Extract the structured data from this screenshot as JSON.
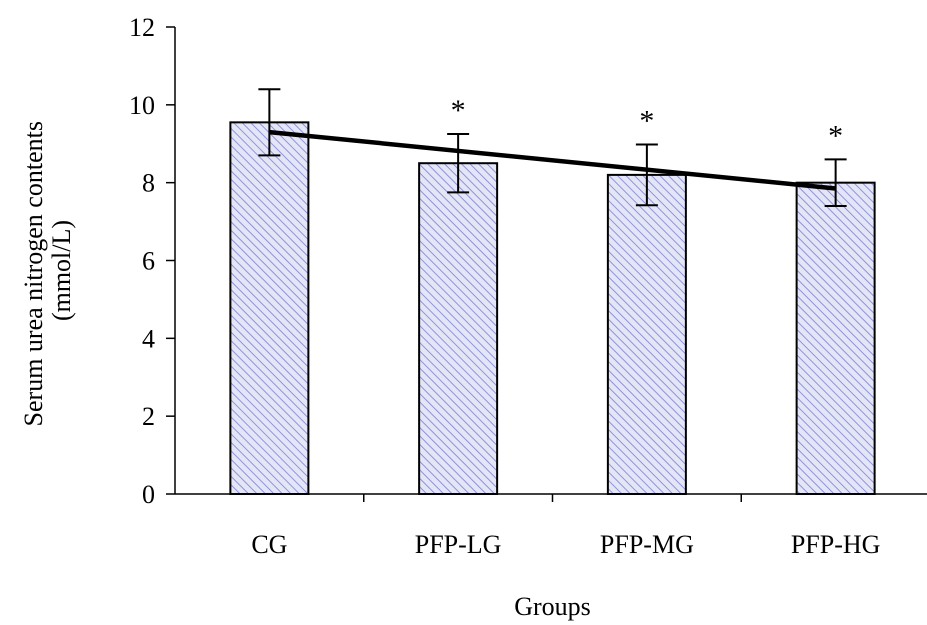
{
  "chart_data": {
    "type": "bar",
    "title": "",
    "xlabel": "Groups",
    "ylabel_lines": [
      "Serum urea nitrogen contents",
      "(mmol/L)"
    ],
    "categories": [
      "CG",
      "PFP-LG",
      "PFP-MG",
      "PFP-HG"
    ],
    "values": [
      9.55,
      8.5,
      8.2,
      8.0
    ],
    "errors": [
      0.85,
      0.75,
      0.78,
      0.6
    ],
    "significance": [
      "",
      "*",
      "*",
      "*"
    ],
    "trend_line": {
      "start": 9.3,
      "end": 7.85
    },
    "ylim": [
      0,
      12
    ],
    "yticks": [
      "0",
      "2",
      "4",
      "6",
      "8",
      "10",
      "12"
    ],
    "bar_fill": "#e4e6f8",
    "bar_hatch": "#8e93d6",
    "grid": false,
    "legend": "none"
  }
}
